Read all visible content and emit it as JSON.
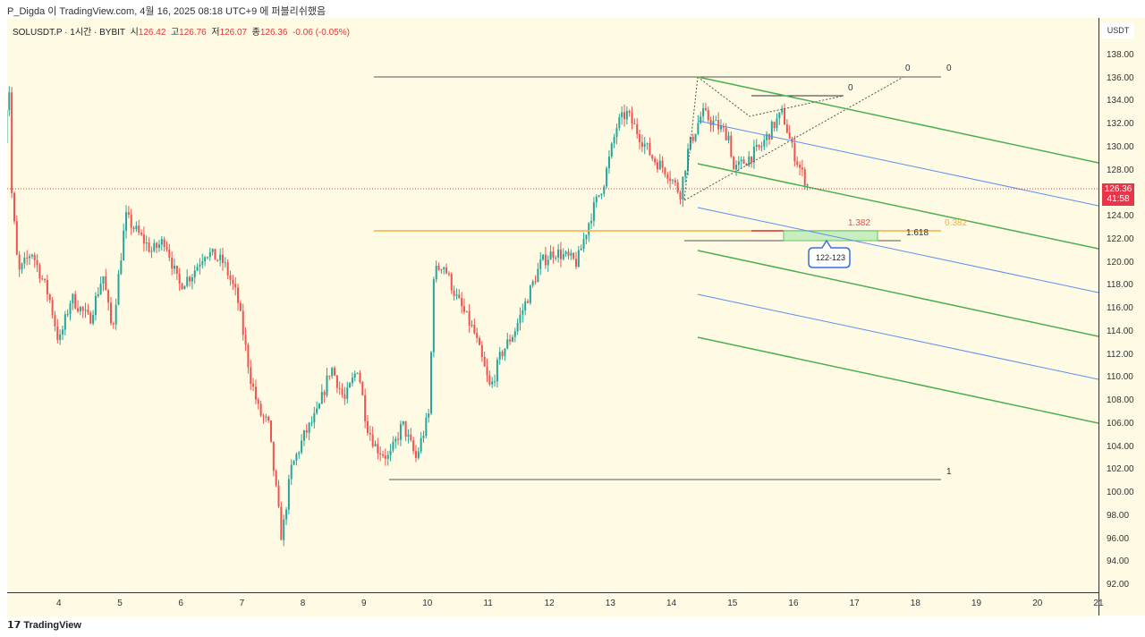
{
  "header": {
    "published": "P_Digda 이 TradingView.com, 4월 16, 2025 08:18 UTC+9 에 퍼블리쉬했음"
  },
  "legend": {
    "symbol": "SOLUSDT.P · 1시간 · BYBIT",
    "open_label": "시",
    "open": "126.42",
    "high_label": "고",
    "high": "126.76",
    "low_label": "저",
    "low": "126.07",
    "close_label": "종",
    "close": "126.36",
    "change": "-0.06 (-0.05%)"
  },
  "price_axis": {
    "currency": "USDT",
    "ticks": [
      "138.00",
      "136.00",
      "134.00",
      "132.00",
      "130.00",
      "128.00",
      "124.00",
      "122.00",
      "120.00",
      "118.00",
      "116.00",
      "114.00",
      "112.00",
      "110.00",
      "108.00",
      "106.00",
      "104.00",
      "102.00",
      "100.00",
      "98.00",
      "96.00",
      "94.00",
      "92.00"
    ],
    "last_price": "126.36",
    "countdown": "41:58"
  },
  "time_axis": {
    "ticks": [
      "4",
      "5",
      "6",
      "7",
      "8",
      "9",
      "10",
      "11",
      "12",
      "13",
      "14",
      "15",
      "16",
      "17",
      "18",
      "19",
      "20",
      "21"
    ]
  },
  "drawings": {
    "fib_top": "0",
    "fib_top2": "0",
    "fib_bottom": "1",
    "small_fib": "0",
    "ext_1382": "1.382",
    "ext_1618": "1.618",
    "ext_0382": "0.382",
    "target_callout": "122-123"
  },
  "colors": {
    "up": "#26a69a",
    "down": "#ef5350",
    "channel_green": "#4caf50",
    "channel_blue": "#5b8ff0",
    "fib_orange": "#f5b041",
    "price_tag": "#e8354a",
    "background": "#fefae4"
  },
  "chart_data": {
    "type": "candlestick",
    "ylim": [
      92,
      138
    ],
    "path": [
      [
        3.1,
        131
      ],
      [
        3.18,
        136
      ],
      [
        3.21,
        127
      ],
      [
        3.33,
        119
      ],
      [
        3.55,
        121
      ],
      [
        3.84,
        117
      ],
      [
        4.0,
        113
      ],
      [
        4.2,
        117
      ],
      [
        4.5,
        115
      ],
      [
        4.72,
        119
      ],
      [
        4.87,
        114
      ],
      [
        5.09,
        124
      ],
      [
        5.23,
        123
      ],
      [
        5.52,
        121
      ],
      [
        5.74,
        122
      ],
      [
        5.96,
        118
      ],
      [
        6.18,
        119
      ],
      [
        6.4,
        121
      ],
      [
        6.7,
        120
      ],
      [
        6.92,
        117
      ],
      [
        7.14,
        110
      ],
      [
        7.28,
        107
      ],
      [
        7.43,
        106
      ],
      [
        7.65,
        96
      ],
      [
        7.8,
        102
      ],
      [
        8.02,
        105
      ],
      [
        8.24,
        107
      ],
      [
        8.46,
        111
      ],
      [
        8.68,
        108
      ],
      [
        8.9,
        111
      ],
      [
        9.04,
        106
      ],
      [
        9.19,
        104
      ],
      [
        9.41,
        103
      ],
      [
        9.63,
        106
      ],
      [
        9.85,
        103
      ],
      [
        10.07,
        107
      ],
      [
        10.14,
        119
      ],
      [
        10.29,
        120
      ],
      [
        10.51,
        117
      ],
      [
        10.8,
        114
      ],
      [
        11.07,
        109
      ],
      [
        11.24,
        112
      ],
      [
        11.46,
        114
      ],
      [
        11.68,
        117
      ],
      [
        11.9,
        120
      ],
      [
        12.12,
        121
      ],
      [
        12.49,
        120
      ],
      [
        12.71,
        124
      ],
      [
        12.93,
        127
      ],
      [
        13.15,
        132
      ],
      [
        13.3,
        133
      ],
      [
        13.52,
        131
      ],
      [
        13.74,
        129
      ],
      [
        13.96,
        128
      ],
      [
        14.18,
        126
      ],
      [
        14.32,
        130
      ],
      [
        14.54,
        133
      ],
      [
        14.76,
        132
      ],
      [
        14.98,
        131
      ],
      [
        15.06,
        128
      ],
      [
        15.28,
        129
      ],
      [
        15.5,
        130
      ],
      [
        15.72,
        132
      ],
      [
        15.86,
        133
      ],
      [
        16.01,
        130
      ],
      [
        16.16,
        128
      ],
      [
        16.3,
        126.36
      ]
    ]
  },
  "footer": {
    "brand": "TradingView"
  }
}
